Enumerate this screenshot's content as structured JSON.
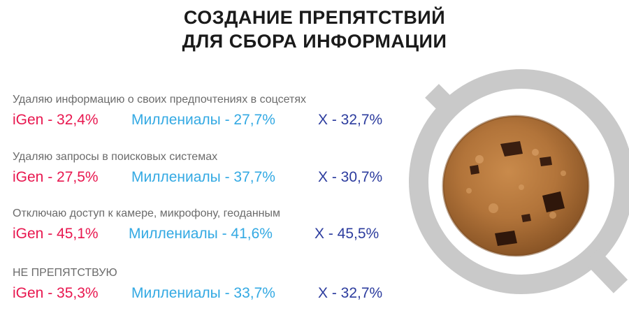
{
  "title": {
    "line1": "СОЗДАНИЕ ПРЕПЯТСТВИЙ",
    "line2": "ДЛЯ СБОРА ИНФОРМАЦИИ"
  },
  "sections": [
    {
      "label": "Удаляю информацию о своих предпочтениях в соцсетях",
      "igen": "iGen - 32,4%",
      "millennials": "Миллениалы - 27,7%",
      "gen_x": "X - 32,7%"
    },
    {
      "label": "Удаляю запросы в поисковых системах",
      "igen": "iGen - 27,5%",
      "millennials": "Миллениалы - 37,7%",
      "gen_x": "X - 30,7%"
    },
    {
      "label": "Отключаю доступ к камере, микрофону, геоданным",
      "igen": "iGen - 45,1%",
      "millennials": "Миллениалы - 41,6%",
      "gen_x": "X - 45,5%"
    },
    {
      "label": "НЕ ПРЕПЯТСТВУЮ",
      "igen": "iGen - 35,3%",
      "millennials": "Миллениалы - 33,7%",
      "gen_x": "X - 32,7%"
    }
  ],
  "colors": {
    "igen": "#e8174f",
    "millennials": "#33a9e3",
    "gen_x": "#2c3c9e",
    "label": "#6b6b6b",
    "ban_sign": "#c9c9c9"
  },
  "icons": {
    "prohibition": "cookie-prohibition-icon"
  }
}
